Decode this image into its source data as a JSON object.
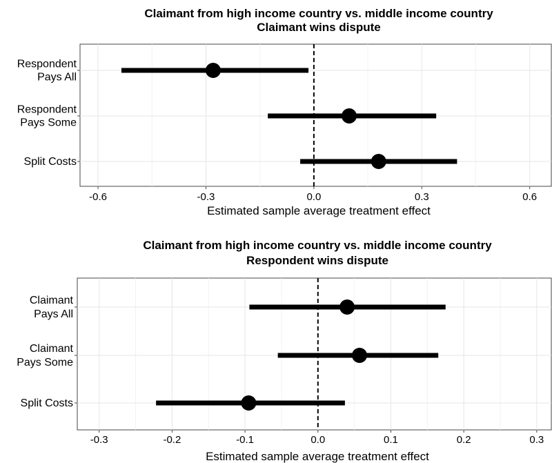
{
  "chart_data": [
    {
      "type": "forest",
      "title": "Claimant from high income country vs. middle income country",
      "subtitle": "Claimant wins dispute",
      "xlabel": "Estimated sample average treatment effect",
      "xlim": [
        -0.65,
        0.66
      ],
      "xticks": [
        -0.6,
        -0.3,
        0.0,
        0.3,
        0.6
      ],
      "xtick_labels": [
        "-0.6",
        "-0.3",
        "0.0",
        "0.3",
        "0.6"
      ],
      "reference_line": 0,
      "categories": [
        {
          "lines": [
            "Respondent",
            "Pays All"
          ],
          "estimate": -0.28,
          "ci": [
            -0.535,
            -0.015
          ]
        },
        {
          "lines": [
            "Respondent",
            "Pays Some"
          ],
          "estimate": 0.098,
          "ci": [
            -0.128,
            0.34
          ]
        },
        {
          "lines": [
            "Split Costs"
          ],
          "estimate": 0.18,
          "ci": [
            -0.038,
            0.398
          ]
        }
      ]
    },
    {
      "type": "forest",
      "title": "Claimant from high income country vs. middle income country",
      "subtitle": "Respondent wins dispute",
      "xlabel": "Estimated sample average treatment effect",
      "xlim": [
        -0.33,
        0.32
      ],
      "xticks": [
        -0.3,
        -0.2,
        -0.1,
        0.0,
        0.1,
        0.2,
        0.3
      ],
      "xtick_labels": [
        "-0.3",
        "-0.2",
        "-0.1",
        "0.0",
        "0.1",
        "0.2",
        "0.3"
      ],
      "reference_line": 0,
      "categories": [
        {
          "lines": [
            "Claimant",
            "Pays All"
          ],
          "estimate": 0.04,
          "ci": [
            -0.094,
            0.175
          ]
        },
        {
          "lines": [
            "Claimant",
            "Pays Some"
          ],
          "estimate": 0.057,
          "ci": [
            -0.055,
            0.165
          ]
        },
        {
          "lines": [
            "Split Costs"
          ],
          "estimate": -0.095,
          "ci": [
            -0.222,
            0.037
          ]
        }
      ]
    }
  ]
}
